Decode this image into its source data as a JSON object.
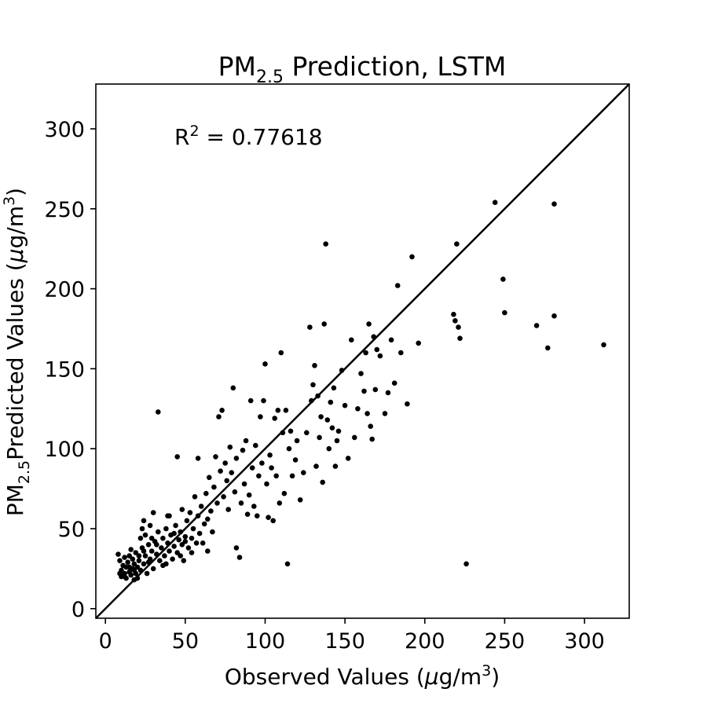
{
  "chart_data": {
    "type": "scatter",
    "title": {
      "prefix": "PM",
      "sub": "2.5",
      "suffix": " Prediction, LSTM"
    },
    "xlabel": {
      "prefix": "Observed Values (",
      "mu": "μ",
      "mid": "g/m",
      "sup": "3",
      "suffix": ")"
    },
    "ylabel": {
      "prefix": "PM",
      "sub": "2.5",
      "mid": "Predicted Values (",
      "mu": "μ",
      "unit": "g/m",
      "sup": "3",
      "suffix": ")"
    },
    "annotation": {
      "prefix": "R",
      "sup": "2",
      "suffix": " = 0.77618"
    },
    "xlim": [
      -6,
      328
    ],
    "ylim": [
      -6,
      328
    ],
    "xticks": [
      0,
      50,
      100,
      150,
      200,
      250,
      300
    ],
    "yticks": [
      0,
      50,
      100,
      150,
      200,
      250,
      300
    ],
    "reference_line": "y = x",
    "grid": false,
    "marker_color": "#000000",
    "points": [
      [
        8,
        34
      ],
      [
        9,
        30
      ],
      [
        10,
        24
      ],
      [
        10,
        20
      ],
      [
        11,
        27
      ],
      [
        12,
        22
      ],
      [
        12,
        32
      ],
      [
        13,
        19
      ],
      [
        13,
        26
      ],
      [
        14,
        29
      ],
      [
        15,
        23
      ],
      [
        15,
        33
      ],
      [
        16,
        21
      ],
      [
        17,
        25
      ],
      [
        17,
        31
      ],
      [
        18,
        18
      ],
      [
        18,
        28
      ],
      [
        19,
        22
      ],
      [
        19,
        35
      ],
      [
        20,
        26
      ],
      [
        20,
        19
      ],
      [
        21,
        30
      ],
      [
        22,
        24
      ],
      [
        22,
        44
      ],
      [
        23,
        38
      ],
      [
        24,
        28
      ],
      [
        24,
        55
      ],
      [
        25,
        33
      ],
      [
        25,
        46
      ],
      [
        26,
        22
      ],
      [
        27,
        40
      ],
      [
        28,
        31
      ],
      [
        28,
        52
      ],
      [
        29,
        36
      ],
      [
        30,
        25
      ],
      [
        30,
        60
      ],
      [
        31,
        42
      ],
      [
        32,
        34
      ],
      [
        33,
        48
      ],
      [
        34,
        30
      ],
      [
        35,
        38
      ],
      [
        36,
        44
      ],
      [
        37,
        33
      ],
      [
        38,
        50
      ],
      [
        38,
        28
      ],
      [
        39,
        41
      ],
      [
        40,
        36
      ],
      [
        40,
        58
      ],
      [
        41,
        46
      ],
      [
        42,
        31
      ],
      [
        43,
        39
      ],
      [
        44,
        52
      ],
      [
        45,
        35
      ],
      [
        46,
        43
      ],
      [
        47,
        48
      ],
      [
        48,
        40
      ],
      [
        48,
        62
      ],
      [
        49,
        30
      ],
      [
        50,
        45
      ],
      [
        51,
        55
      ],
      [
        52,
        38
      ],
      [
        53,
        60
      ],
      [
        54,
        44
      ],
      [
        55,
        50
      ],
      [
        56,
        70
      ],
      [
        57,
        41
      ],
      [
        58,
        58
      ],
      [
        59,
        47
      ],
      [
        60,
        64
      ],
      [
        62,
        53
      ],
      [
        63,
        72
      ],
      [
        64,
        56
      ],
      [
        65,
        82
      ],
      [
        66,
        61
      ],
      [
        67,
        48
      ],
      [
        68,
        76
      ],
      [
        69,
        95
      ],
      [
        70,
        66
      ],
      [
        71,
        120
      ],
      [
        72,
        86
      ],
      [
        73,
        124
      ],
      [
        74,
        70
      ],
      [
        75,
        91
      ],
      [
        76,
        80
      ],
      [
        77,
        62
      ],
      [
        78,
        101
      ],
      [
        79,
        85
      ],
      [
        80,
        138
      ],
      [
        81,
        73
      ],
      [
        82,
        94
      ],
      [
        82,
        38
      ],
      [
        84,
        32
      ],
      [
        85,
        66
      ],
      [
        86,
        99
      ],
      [
        87,
        78
      ],
      [
        88,
        105
      ],
      [
        89,
        59
      ],
      [
        90,
        71
      ],
      [
        91,
        130
      ],
      [
        92,
        88
      ],
      [
        93,
        64
      ],
      [
        94,
        102
      ],
      [
        95,
        58
      ],
      [
        96,
        83
      ],
      [
        97,
        120
      ],
      [
        98,
        91
      ],
      [
        99,
        130
      ],
      [
        100,
        153
      ],
      [
        101,
        78
      ],
      [
        102,
        57
      ],
      [
        103,
        96
      ],
      [
        104,
        88
      ],
      [
        105,
        55
      ],
      [
        106,
        119
      ],
      [
        107,
        83
      ],
      [
        108,
        124
      ],
      [
        109,
        66
      ],
      [
        110,
        160
      ],
      [
        111,
        110
      ],
      [
        112,
        72
      ],
      [
        113,
        124
      ],
      [
        114,
        28
      ],
      [
        115,
        100
      ],
      [
        116,
        111
      ],
      [
        117,
        83
      ],
      [
        119,
        93
      ],
      [
        120,
        105
      ],
      [
        122,
        68
      ],
      [
        124,
        85
      ],
      [
        126,
        110
      ],
      [
        128,
        176
      ],
      [
        129,
        130
      ],
      [
        130,
        140
      ],
      [
        131,
        152
      ],
      [
        132,
        89
      ],
      [
        133,
        133
      ],
      [
        134,
        107
      ],
      [
        135,
        120
      ],
      [
        136,
        79
      ],
      [
        137,
        178
      ],
      [
        138,
        228
      ],
      [
        139,
        118
      ],
      [
        140,
        100
      ],
      [
        141,
        129
      ],
      [
        142,
        113
      ],
      [
        143,
        138
      ],
      [
        144,
        89
      ],
      [
        145,
        105
      ],
      [
        146,
        111
      ],
      [
        148,
        149
      ],
      [
        150,
        127
      ],
      [
        152,
        94
      ],
      [
        154,
        168
      ],
      [
        156,
        107
      ],
      [
        158,
        125
      ],
      [
        160,
        147
      ],
      [
        162,
        136
      ],
      [
        163,
        160
      ],
      [
        164,
        122
      ],
      [
        165,
        178
      ],
      [
        166,
        114
      ],
      [
        167,
        106
      ],
      [
        168,
        170
      ],
      [
        169,
        137
      ],
      [
        170,
        162
      ],
      [
        172,
        158
      ],
      [
        175,
        122
      ],
      [
        177,
        135
      ],
      [
        179,
        168
      ],
      [
        181,
        141
      ],
      [
        183,
        202
      ],
      [
        185,
        160
      ],
      [
        189,
        128
      ],
      [
        192,
        220
      ],
      [
        196,
        166
      ],
      [
        218,
        184
      ],
      [
        219,
        180
      ],
      [
        220,
        228
      ],
      [
        221,
        176
      ],
      [
        222,
        169
      ],
      [
        226,
        28
      ],
      [
        244,
        254
      ],
      [
        249,
        206
      ],
      [
        250,
        185
      ],
      [
        270,
        177
      ],
      [
        277,
        163
      ],
      [
        281,
        183
      ],
      [
        281,
        253
      ],
      [
        312,
        165
      ],
      [
        33,
        123
      ],
      [
        45,
        95
      ],
      [
        12,
        20
      ],
      [
        15,
        26
      ],
      [
        18,
        24
      ],
      [
        21,
        33
      ],
      [
        24,
        36
      ],
      [
        27,
        29
      ],
      [
        29,
        44
      ],
      [
        32,
        40
      ],
      [
        36,
        27
      ],
      [
        39,
        58
      ],
      [
        43,
        47
      ],
      [
        47,
        33
      ],
      [
        50,
        42
      ],
      [
        54,
        35
      ],
      [
        58,
        94
      ],
      [
        61,
        41
      ],
      [
        64,
        36
      ],
      [
        9,
        22
      ],
      [
        16,
        37
      ],
      [
        23,
        50
      ]
    ]
  }
}
